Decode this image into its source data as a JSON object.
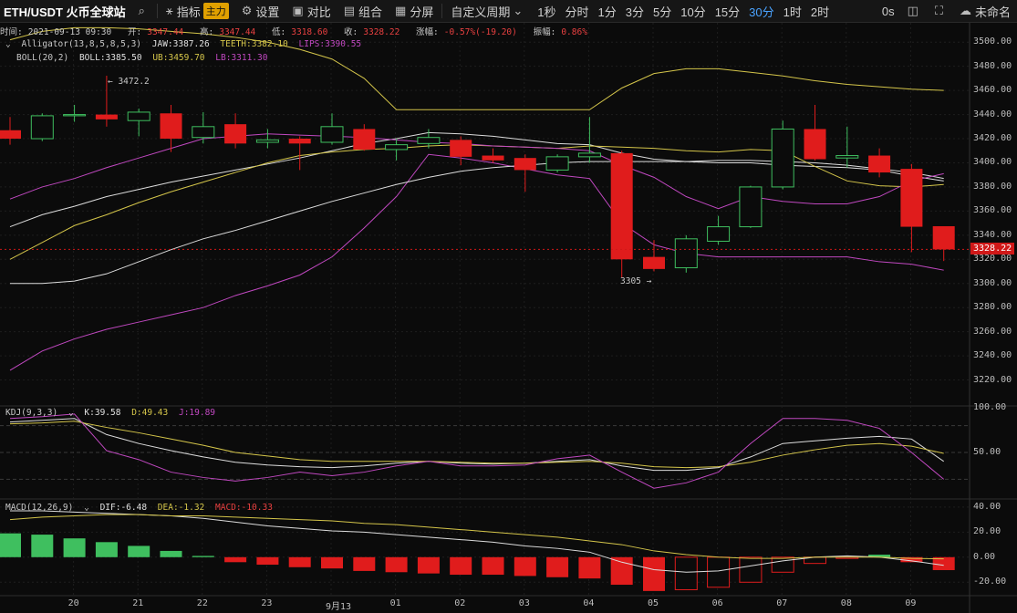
{
  "toolbar": {
    "symbol": "ETH/USDT 火币全球站",
    "indicator_label": "指标",
    "main_badge": "主力",
    "settings_label": "设置",
    "compare_label": "对比",
    "combo_label": "组合",
    "split_label": "分屏",
    "custom_period_label": "自定义周期",
    "periods": [
      "1秒",
      "分时",
      "1分",
      "3分",
      "5分",
      "10分",
      "15分",
      "30分",
      "1时",
      "2时"
    ],
    "active_period": "30分",
    "seconds_label": "0s",
    "account_label": "未命名"
  },
  "ohlc": {
    "time_label": "时间:",
    "time": "2021-09-13 09:30",
    "open_label": "开:",
    "open": "3347.44",
    "high_label": "高:",
    "high": "3347.44",
    "low_label": "低:",
    "low": "3318.60",
    "close_label": "收:",
    "close": "3328.22",
    "change_label": "涨幅:",
    "change": "-0.57%(-19.20)",
    "amp_label": "振幅:",
    "amp": "0.86%"
  },
  "alligator": {
    "name": "Alligator(13,8,5,8,5,3)",
    "jaw": "JAW:3387.26",
    "teeth": "TEETH:3382.10",
    "lips": "LIPS:3390.55"
  },
  "boll": {
    "name": "BOLL(20,2)",
    "boll": "BOLL:3385.50",
    "ub": "UB:3459.70",
    "lb": "LB:3311.30"
  },
  "annotations": {
    "high": "← 3472.2",
    "low": "3305 →"
  },
  "last_price": "3328.22",
  "kdj": {
    "name": "KDJ(9,3,3)",
    "k": "K:39.58",
    "d": "D:49.43",
    "j": "J:19.89"
  },
  "macd": {
    "name": "MACD(12,26,9)",
    "dif": "DIF:-6.48",
    "dea": "DEA:-1.32",
    "macd": "MACD:-10.33"
  },
  "colors": {
    "up": "#3fbf5f",
    "down": "#e01c1c",
    "yellow": "#d4c54a",
    "pink": "#c048c0",
    "white": "#dcdcdc"
  },
  "chart_data": [
    {
      "type": "candlestick",
      "title": "ETH/USDT",
      "ylim": [
        3200,
        3510
      ],
      "yticks": [
        3500,
        3480,
        3460,
        3440,
        3420,
        3400,
        3380,
        3360,
        3340,
        3320,
        3300,
        3280,
        3260,
        3240,
        3220
      ],
      "x_ticks": [
        "20",
        "21",
        "22",
        "23",
        "9月13",
        "01",
        "02",
        "03",
        "04",
        "05",
        "06",
        "07",
        "08",
        "09"
      ],
      "candles": [
        {
          "o": 3427,
          "h": 3438,
          "l": 3415,
          "c": 3420
        },
        {
          "o": 3420,
          "h": 3441,
          "l": 3418,
          "c": 3439
        },
        {
          "o": 3439,
          "h": 3448,
          "l": 3434,
          "c": 3440
        },
        {
          "o": 3440,
          "h": 3472.2,
          "l": 3430,
          "c": 3436
        },
        {
          "o": 3435,
          "h": 3445,
          "l": 3422,
          "c": 3442
        },
        {
          "o": 3441,
          "h": 3448,
          "l": 3409,
          "c": 3420
        },
        {
          "o": 3421,
          "h": 3442,
          "l": 3416,
          "c": 3430
        },
        {
          "o": 3432,
          "h": 3441,
          "l": 3412,
          "c": 3416
        },
        {
          "o": 3417,
          "h": 3428,
          "l": 3412,
          "c": 3419
        },
        {
          "o": 3420,
          "h": 3422,
          "l": 3394,
          "c": 3416
        },
        {
          "o": 3417,
          "h": 3441,
          "l": 3415,
          "c": 3430
        },
        {
          "o": 3428,
          "h": 3432,
          "l": 3410,
          "c": 3411
        },
        {
          "o": 3411,
          "h": 3420,
          "l": 3402,
          "c": 3415
        },
        {
          "o": 3416,
          "h": 3428,
          "l": 3412,
          "c": 3421
        },
        {
          "o": 3419,
          "h": 3422,
          "l": 3398,
          "c": 3405
        },
        {
          "o": 3406,
          "h": 3412,
          "l": 3400,
          "c": 3402
        },
        {
          "o": 3404,
          "h": 3407,
          "l": 3376,
          "c": 3394
        },
        {
          "o": 3394,
          "h": 3407,
          "l": 3392,
          "c": 3405
        },
        {
          "o": 3405,
          "h": 3438,
          "l": 3400,
          "c": 3408
        },
        {
          "o": 3408,
          "h": 3410,
          "l": 3305,
          "c": 3320
        },
        {
          "o": 3322,
          "h": 3336,
          "l": 3310,
          "c": 3312
        },
        {
          "o": 3313,
          "h": 3340,
          "l": 3309,
          "c": 3337
        },
        {
          "o": 3335,
          "h": 3356,
          "l": 3332,
          "c": 3347
        },
        {
          "o": 3347,
          "h": 3381,
          "l": 3346,
          "c": 3380
        },
        {
          "o": 3380,
          "h": 3435,
          "l": 3378,
          "c": 3428
        },
        {
          "o": 3428,
          "h": 3448,
          "l": 3402,
          "c": 3403
        },
        {
          "o": 3404,
          "h": 3430,
          "l": 3396,
          "c": 3406
        },
        {
          "o": 3406,
          "h": 3412,
          "l": 3388,
          "c": 3392
        },
        {
          "o": 3395,
          "h": 3399,
          "l": 3326,
          "c": 3347
        },
        {
          "o": 3347.44,
          "h": 3347.44,
          "l": 3318.6,
          "c": 3328.22
        }
      ],
      "series": [
        {
          "name": "UB",
          "values": [
            3502,
            3509,
            3512,
            3512,
            3511,
            3509,
            3507,
            3504,
            3500,
            3494,
            3486,
            3470,
            3444,
            3444,
            3444,
            3444,
            3444,
            3444,
            3444,
            3462,
            3474,
            3478,
            3478,
            3475,
            3472,
            3468,
            3465,
            3463,
            3461,
            3460
          ]
        },
        {
          "name": "BOLL",
          "values": [
            3347,
            3357,
            3364,
            3372,
            3378,
            3384,
            3389,
            3394,
            3399,
            3404,
            3410,
            3416,
            3420,
            3425,
            3424,
            3422,
            3419,
            3416,
            3415,
            3408,
            3403,
            3401,
            3400,
            3400,
            3398,
            3397,
            3396,
            3394,
            3389,
            3385
          ]
        },
        {
          "name": "LB",
          "values": [
            3228,
            3244,
            3254,
            3262,
            3268,
            3274,
            3280,
            3290,
            3298,
            3307,
            3322,
            3346,
            3372,
            3407,
            3404,
            3400,
            3395,
            3390,
            3387,
            3350,
            3332,
            3325,
            3322,
            3322,
            3322,
            3322,
            3322,
            3318,
            3316,
            3311
          ]
        },
        {
          "name": "JAW",
          "values": [
            3300,
            3300,
            3302,
            3308,
            3318,
            3328,
            3337,
            3344,
            3352,
            3360,
            3368,
            3375,
            3382,
            3388,
            3393,
            3396,
            3398,
            3400,
            3401,
            3401,
            3401,
            3401,
            3402,
            3402,
            3401,
            3400,
            3398,
            3395,
            3392,
            3387
          ]
        },
        {
          "name": "TEETH",
          "values": [
            3320,
            3334,
            3348,
            3357,
            3367,
            3376,
            3384,
            3392,
            3400,
            3406,
            3409,
            3411,
            3412,
            3414,
            3415,
            3414,
            3413,
            3412,
            3414,
            3413,
            3412,
            3410,
            3409,
            3411,
            3410,
            3397,
            3385,
            3381,
            3380,
            3382
          ]
        },
        {
          "name": "LIPS",
          "values": [
            3370,
            3380,
            3387,
            3396,
            3404,
            3412,
            3420,
            3422,
            3424,
            3423,
            3422,
            3421,
            3419,
            3417,
            3416,
            3414,
            3413,
            3412,
            3410,
            3398,
            3388,
            3372,
            3362,
            3372,
            3368,
            3366,
            3366,
            3372,
            3385,
            3391
          ]
        }
      ]
    },
    {
      "type": "line",
      "title": "KDJ(9,3,3)",
      "ylim": [
        0,
        100
      ],
      "yticks": [
        100,
        50
      ],
      "series": [
        {
          "name": "K",
          "values": [
            84,
            86,
            88,
            70,
            60,
            52,
            45,
            39,
            36,
            34,
            33,
            35,
            38,
            40,
            38,
            37,
            38,
            40,
            42,
            35,
            30,
            30,
            33,
            45,
            60,
            63,
            66,
            68,
            65,
            40
          ]
        },
        {
          "name": "D",
          "values": [
            82,
            83,
            85,
            78,
            72,
            65,
            58,
            50,
            46,
            42,
            40,
            40,
            40,
            40,
            39,
            38,
            38,
            39,
            40,
            38,
            34,
            33,
            34,
            39,
            47,
            53,
            58,
            60,
            57,
            49
          ]
        },
        {
          "name": "J",
          "values": [
            88,
            90,
            93,
            52,
            42,
            28,
            22,
            18,
            22,
            28,
            24,
            28,
            35,
            40,
            35,
            35,
            36,
            43,
            47,
            28,
            10,
            16,
            28,
            60,
            88,
            88,
            86,
            77,
            50,
            20
          ]
        }
      ]
    },
    {
      "type": "bar+line",
      "title": "MACD(12,26,9)",
      "ylim": [
        -30,
        45
      ],
      "yticks": [
        40,
        20,
        0,
        -20
      ],
      "series": [
        {
          "name": "MACD",
          "values": [
            19,
            18,
            15,
            12,
            9,
            5,
            1,
            -4,
            -6,
            -8,
            -9,
            -11,
            -12,
            -13,
            -14,
            -14,
            -15,
            -16,
            -17,
            -22,
            -27,
            -26,
            -24,
            -20,
            -12,
            -5,
            -1,
            2,
            -4,
            -10.33
          ]
        },
        {
          "name": "DIF",
          "values": [
            37,
            37,
            36,
            35,
            34,
            33,
            31,
            28,
            25,
            23,
            21,
            20,
            18,
            16,
            14,
            12,
            9,
            7,
            4,
            -4,
            -10,
            -12,
            -11,
            -7,
            -3,
            0,
            1,
            0,
            -3,
            -6.48
          ]
        },
        {
          "name": "DEA",
          "values": [
            30,
            32,
            33,
            34,
            34,
            33,
            33,
            32,
            31,
            30,
            29,
            27,
            26,
            24,
            22,
            20,
            18,
            16,
            13,
            10,
            5,
            2,
            0,
            -1,
            -1,
            0,
            0,
            0,
            -1,
            -1.32
          ]
        }
      ]
    }
  ]
}
